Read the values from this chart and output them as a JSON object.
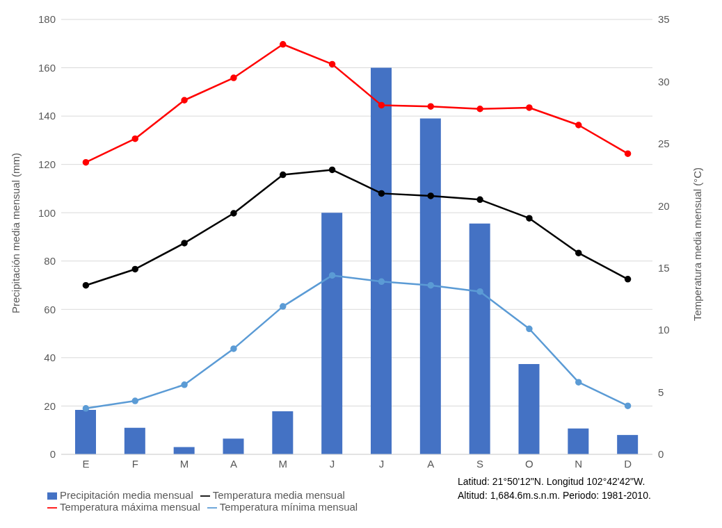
{
  "chart_data": {
    "type": "bar",
    "categories": [
      "E",
      "F",
      "M",
      "A",
      "M",
      "J",
      "J",
      "A",
      "S",
      "O",
      "N",
      "D"
    ],
    "series": [
      {
        "name": "Precipitación media mensual",
        "color": "#4472c4",
        "values": [
          18.4,
          11,
          3,
          6.5,
          17.8,
          100,
          160,
          139,
          95.5,
          37.4,
          10.7,
          8
        ]
      },
      {
        "name": "Temperatura media mensual",
        "type": "line",
        "axis": "y2",
        "color": "#000000",
        "values": [
          13.6,
          14.9,
          17.0,
          19.4,
          22.5,
          22.9,
          21.0,
          20.8,
          20.5,
          19.0,
          16.2,
          14.1
        ]
      },
      {
        "name": "Temperatura máxima mensual",
        "type": "line",
        "axis": "y2",
        "color": "#ff0000",
        "values": [
          23.5,
          25.4,
          28.5,
          30.3,
          33.0,
          31.4,
          28.1,
          28.0,
          27.8,
          27.9,
          26.5,
          24.2
        ]
      },
      {
        "name": "Temperatura mínima mensual",
        "type": "line",
        "axis": "y2",
        "color": "#5b9bd5",
        "values": [
          3.7,
          4.3,
          5.6,
          8.5,
          11.9,
          14.4,
          13.9,
          13.6,
          13.1,
          10.1,
          5.8,
          3.9
        ]
      }
    ],
    "ylabel": "Precipitación media mensual (mm)",
    "y2label": "Temperatura media mensual (°C)",
    "ylim": [
      0,
      180
    ],
    "yticks": [
      0,
      20,
      40,
      60,
      80,
      100,
      120,
      140,
      160,
      180
    ],
    "y2lim": [
      0,
      35
    ],
    "y2ticks": [
      0,
      5,
      10,
      15,
      20,
      25,
      30,
      35
    ],
    "grid": "y",
    "legend": "bottom",
    "marker": "circle",
    "line_style": "solid",
    "annotations": [
      "Latitud: 21°50'12\"N. Longitud 102°42'42\"W.",
      "Altitud: 1,684.6m.s.n.m. Periodo: 1981-2010."
    ]
  }
}
